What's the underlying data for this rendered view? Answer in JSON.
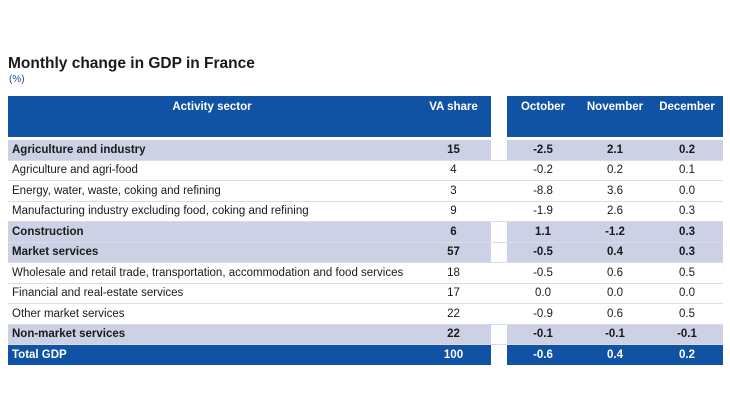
{
  "title": "Monthly change in GDP in France",
  "unit": "(%)",
  "headers": {
    "sector": "Activity sector",
    "share": "VA share",
    "oct": "October",
    "nov": "November",
    "dec": "December"
  },
  "rows": [
    {
      "label": "Agriculture and industry",
      "share": "15",
      "oct": "-2.5",
      "nov": "2.1",
      "dec": "0.2"
    },
    {
      "label": "Agriculture and agri-food",
      "share": "4",
      "oct": "-0.2",
      "nov": "0.2",
      "dec": "0.1"
    },
    {
      "label": "Energy, water, waste, coking and refining",
      "share": "3",
      "oct": "-8.8",
      "nov": "3.6",
      "dec": "0.0"
    },
    {
      "label": "Manufacturing industry excluding food, coking and refining",
      "share": "9",
      "oct": "-1.9",
      "nov": "2.6",
      "dec": "0.3"
    },
    {
      "label": "Construction",
      "share": "6",
      "oct": "1.1",
      "nov": "-1.2",
      "dec": "0.3"
    },
    {
      "label": "Market services",
      "share": "57",
      "oct": "-0.5",
      "nov": "0.4",
      "dec": "0.3"
    },
    {
      "label": "Wholesale and retail trade, transportation, accommodation and food services",
      "share": "18",
      "oct": "-0.5",
      "nov": "0.6",
      "dec": "0.5"
    },
    {
      "label": "Financial and real-estate services",
      "share": "17",
      "oct": "0.0",
      "nov": "0.0",
      "dec": "0.0"
    },
    {
      "label": "Other market services",
      "share": "22",
      "oct": "-0.9",
      "nov": "0.6",
      "dec": "0.5"
    },
    {
      "label": "Non-market services",
      "share": "22",
      "oct": "-0.1",
      "nov": "-0.1",
      "dec": "-0.1"
    },
    {
      "label": "Total GDP",
      "share": "100",
      "oct": "-0.6",
      "nov": "0.4",
      "dec": "0.2"
    }
  ],
  "colors": {
    "header_bg": "#1053a4",
    "group_bg": "#ccd1e6",
    "unit_text": "#1a4a9b"
  }
}
